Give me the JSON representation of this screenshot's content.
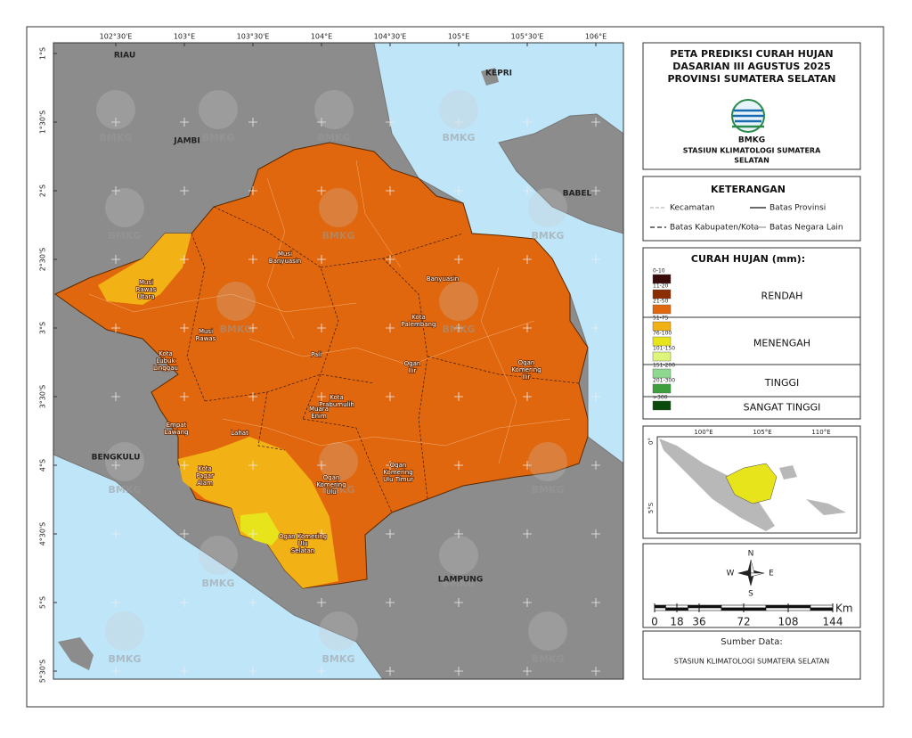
{
  "map": {
    "x_labels": [
      "102°30'E",
      "103°E",
      "103°30'E",
      "104°E",
      "104°30'E",
      "105°E",
      "105°30'E",
      "106°E"
    ],
    "y_labels": [
      "1°S",
      "1°30'S",
      "2°S",
      "2°30'S",
      "3°S",
      "3°30'S",
      "4°S",
      "4°30'S",
      "5°S",
      "5°30'S"
    ],
    "regions": [
      "RIAU",
      "JAMBI",
      "KEPRI",
      "BABEL",
      "BENGKULU",
      "LAMPUNG"
    ],
    "districts": [
      {
        "lines": [
          "Musi",
          "Banyuasin"
        ]
      },
      {
        "lines": [
          "Banyuasin"
        ]
      },
      {
        "lines": [
          "Musi",
          "Rawas",
          "Utara"
        ]
      },
      {
        "lines": [
          "Musi",
          "Rawas"
        ]
      },
      {
        "lines": [
          "Kota",
          "Lubuk",
          "Linggau"
        ]
      },
      {
        "lines": [
          "Kota",
          "Palembang"
        ]
      },
      {
        "lines": [
          "Pali"
        ]
      },
      {
        "lines": [
          "Ogan",
          "Ilir"
        ]
      },
      {
        "lines": [
          "Ogan",
          "Komering",
          "Ilir"
        ]
      },
      {
        "lines": [
          "Kota",
          "Prabumulih"
        ]
      },
      {
        "lines": [
          "Muara",
          "Enim"
        ]
      },
      {
        "lines": [
          "Empat",
          "Lawang"
        ]
      },
      {
        "lines": [
          "Lahat"
        ]
      },
      {
        "lines": [
          "Kota",
          "Pagar",
          "Alam"
        ]
      },
      {
        "lines": [
          "Ogan",
          "Komering",
          "Ulu"
        ]
      },
      {
        "lines": [
          "Ogan",
          "Komering",
          "Ulu Timur"
        ]
      },
      {
        "lines": [
          "Ogan Komering",
          "Ulu",
          "Selatan"
        ]
      }
    ],
    "watermark": "BMKG"
  },
  "title": {
    "lines": [
      "PETA PREDIKSI CURAH HUJAN",
      "DASARIAN III AGUSTUS 2025",
      "PROVINSI SUMATERA SELATAN"
    ],
    "logo_text": "BMKG",
    "station": [
      "STASIUN KLIMATOLOGI SUMATERA",
      "SELATAN"
    ]
  },
  "legend": {
    "title": "KETERANGAN",
    "items": [
      "Kecamatan",
      "Batas Provinsi",
      "Batas Kabupaten/Kota",
      "Batas Negara Lain"
    ]
  },
  "rainfall": {
    "title": "CURAH HUJAN (mm):",
    "groups": [
      {
        "name": "RENDAH",
        "classes": [
          {
            "label": "0-10",
            "color": "#3a0a0a"
          },
          {
            "label": "11-20",
            "color": "#8b2d00"
          },
          {
            "label": "21-50",
            "color": "#e0670d"
          }
        ]
      },
      {
        "name": "MENENGAH",
        "classes": [
          {
            "label": "51-75",
            "color": "#f2b115"
          },
          {
            "label": "76-100",
            "color": "#e8e41c"
          },
          {
            "label": "101-150",
            "color": "#dcf57a"
          }
        ]
      },
      {
        "name": "TINGGI",
        "classes": [
          {
            "label": "151-200",
            "color": "#8fd88f"
          },
          {
            "label": "201-300",
            "color": "#3e9e3e"
          }
        ]
      },
      {
        "name": "SANGAT TINGGI",
        "classes": [
          {
            "label": ">300",
            "color": "#0a4a0a"
          }
        ]
      }
    ]
  },
  "inset": {
    "x_labels": [
      "100°E",
      "105°E",
      "110°E"
    ],
    "y_labels": [
      "0°",
      "5°S"
    ]
  },
  "compass": {
    "n": "N",
    "e": "E",
    "s": "S",
    "w": "W"
  },
  "scale": {
    "ticks": [
      0,
      18,
      36,
      72,
      108,
      144
    ],
    "unit": "Km"
  },
  "source": {
    "label": "Sumber Data:",
    "text": "STASIUN KLIMATOLOGI SUMATERA SELATAN"
  }
}
